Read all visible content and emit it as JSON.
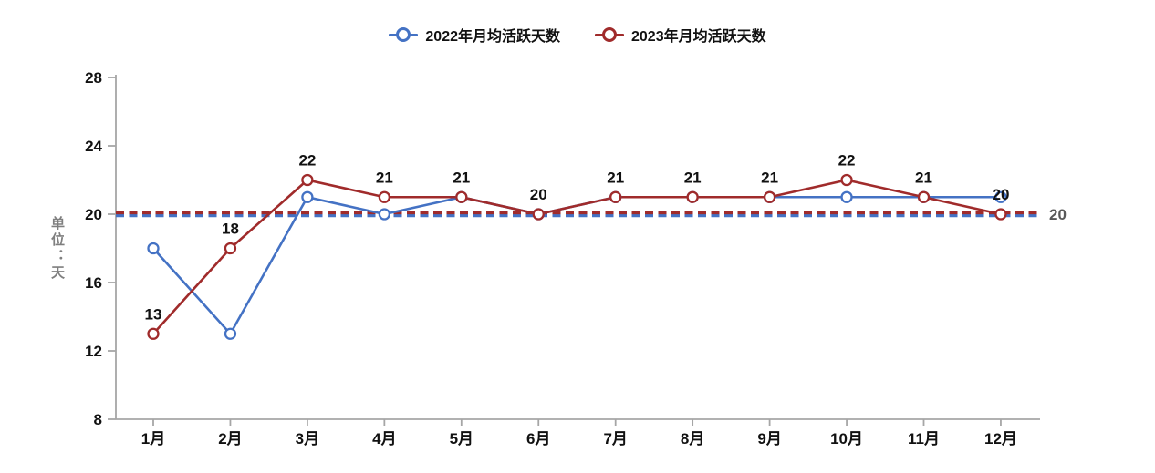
{
  "legend": [
    {
      "label": "2022年月均活跃天数",
      "color": "#4472C4"
    },
    {
      "label": "2023年月均活跃天数",
      "color": "#A02B2B"
    }
  ],
  "chart_data": {
    "type": "line",
    "categories": [
      "1月",
      "2月",
      "3月",
      "4月",
      "5月",
      "6月",
      "7月",
      "8月",
      "9月",
      "10月",
      "11月",
      "12月"
    ],
    "series": [
      {
        "name": "2022年月均活跃天数",
        "color": "#4472C4",
        "values": [
          18,
          13,
          21,
          20,
          21,
          20,
          21,
          21,
          21,
          21,
          21,
          21
        ],
        "data_labels": false,
        "avg_line": true
      },
      {
        "name": "2023年月均活跃天数",
        "color": "#A02B2B",
        "values": [
          13,
          18,
          22,
          21,
          21,
          20,
          21,
          21,
          21,
          22,
          21,
          20
        ],
        "data_labels": true,
        "avg_line": true
      }
    ],
    "ylabel": "单位：天",
    "xlabel": "",
    "yticks": [
      8,
      12,
      16,
      20,
      24,
      28
    ],
    "ylim": [
      8,
      28
    ],
    "avg_line_label": "20",
    "grid": false,
    "legend_position": "top",
    "marker": "open-circle",
    "avg_line_style": "dashed"
  },
  "colors": {
    "axis": "#A6A6A6",
    "tick_text": "#111111",
    "data_label_text": "#111111",
    "avg_label_text": "#595959",
    "y_title_text": "#7F7F7F",
    "background": "#FFFFFF"
  }
}
